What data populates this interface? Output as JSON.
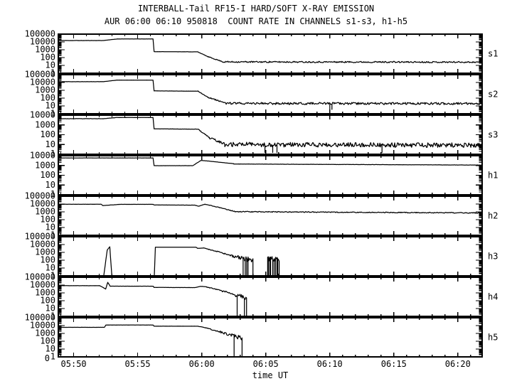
{
  "title": "INTERBALL-Tail RF15-I HARD/SOFT X-RAY EMISSION",
  "subtitle": "AUR 06:00 06:10 950818  COUNT RATE IN CHANNELS s1-s3, h1-h5",
  "colors": {
    "background": "#ffffff",
    "axis": "#000000",
    "curve": "#000000"
  },
  "rng_seed": 11,
  "chart_data": {
    "type": "line",
    "title": "INTERBALL-Tail RF15-I HARD/SOFT X-RAY EMISSION",
    "subtitle": "AUR 06:00 06:10 950818  COUNT RATE IN CHANNELS s1-s3, h1-h5",
    "xlabel": "time UT",
    "y_scale": "log",
    "grid": false,
    "corner_label": "0",
    "x_start_minutes_after_0500": 48.8,
    "x_end_minutes_after_0500": 81.9,
    "x_minor_tick_every_minutes": 1,
    "x_major_ticks": [
      {
        "t": 50,
        "label": "05:50"
      },
      {
        "t": 55,
        "label": "05:55"
      },
      {
        "t": 60,
        "label": "06:00"
      },
      {
        "t": 65,
        "label": "06:05"
      },
      {
        "t": 70,
        "label": "06:10"
      },
      {
        "t": 75,
        "label": "06:15"
      },
      {
        "t": 80,
        "label": "06:20"
      }
    ],
    "segment_format": "[t_start_min, t_end_min, log10_count_start, log10_count_end, jitter_log, needle_probability, needle_log_level]",
    "panels": [
      {
        "label": "s1",
        "decades": 5,
        "y_tick_labels": [
          "100000",
          "10000",
          "1000",
          "100",
          "10",
          "1"
        ],
        "segments": [
          [
            48.8,
            52.3,
            4.18,
            4.18,
            0.012
          ],
          [
            52.3,
            53.4,
            4.18,
            4.38,
            0.01
          ],
          [
            53.4,
            56.2,
            4.38,
            4.38,
            0.008
          ],
          [
            56.2,
            56.28,
            4.38,
            2.76
          ],
          [
            56.28,
            59.7,
            2.76,
            2.73,
            0.008
          ],
          [
            59.7,
            60.5,
            2.73,
            2.1,
            0.02
          ],
          [
            60.5,
            61.6,
            2.1,
            1.5,
            0.05
          ],
          [
            61.6,
            81.9,
            1.45,
            1.42,
            0.09
          ]
        ]
      },
      {
        "label": "s2",
        "decades": 5,
        "y_tick_labels": [
          "100000",
          "10000",
          "1000",
          "100",
          "10",
          "1"
        ],
        "segments": [
          [
            48.8,
            52.3,
            4.1,
            4.1,
            0.012
          ],
          [
            52.3,
            53.4,
            4.1,
            4.3,
            0.01
          ],
          [
            53.4,
            56.2,
            4.3,
            4.3,
            0.008
          ],
          [
            56.2,
            56.28,
            4.3,
            2.92
          ],
          [
            56.28,
            59.7,
            2.92,
            2.89,
            0.008
          ],
          [
            59.7,
            60.5,
            2.89,
            2.1,
            0.03
          ],
          [
            60.5,
            61.8,
            2.1,
            1.4,
            0.07
          ],
          [
            61.8,
            81.9,
            1.32,
            1.3,
            0.14,
            0.012,
            0.55
          ]
        ]
      },
      {
        "label": "s3",
        "decades": 4,
        "y_tick_labels": [
          "10000",
          "1000",
          "100",
          "10",
          "1"
        ],
        "segments": [
          [
            48.8,
            52.3,
            3.64,
            3.64,
            0.012
          ],
          [
            52.3,
            53.4,
            3.64,
            3.76,
            0.01
          ],
          [
            53.4,
            56.2,
            3.76,
            3.76,
            0.008
          ],
          [
            56.2,
            56.28,
            3.76,
            2.6
          ],
          [
            56.28,
            59.7,
            2.6,
            2.57,
            0.01
          ],
          [
            59.7,
            60.6,
            2.57,
            1.7,
            0.05
          ],
          [
            60.6,
            61.8,
            1.7,
            1.05,
            0.12
          ],
          [
            61.8,
            81.9,
            1.0,
            0.92,
            0.24,
            0.02,
            0.18
          ]
        ]
      },
      {
        "label": "h1",
        "decades": 4,
        "y_tick_labels": [
          "10000",
          "1000",
          "100",
          "10",
          "1"
        ],
        "segments": [
          [
            48.8,
            56.2,
            3.77,
            3.77,
            0.006
          ],
          [
            56.2,
            56.28,
            3.77,
            2.98
          ],
          [
            56.28,
            59.3,
            2.98,
            2.98,
            0.006
          ],
          [
            59.3,
            59.95,
            2.98,
            3.52,
            0.008
          ],
          [
            59.95,
            60.6,
            3.52,
            3.44,
            0.008
          ],
          [
            60.6,
            62.5,
            3.44,
            3.18,
            0.006
          ],
          [
            62.5,
            81.9,
            3.15,
            3.04,
            0.012
          ]
        ]
      },
      {
        "label": "h2",
        "decades": 5,
        "y_tick_labels": [
          "100000",
          "10000",
          "1000",
          "100",
          "10",
          "1"
        ],
        "segments": [
          [
            48.8,
            52.15,
            3.97,
            3.97,
            0.008
          ],
          [
            52.15,
            52.28,
            3.97,
            3.8
          ],
          [
            52.28,
            53.6,
            3.8,
            3.96,
            0.008
          ],
          [
            53.6,
            56.2,
            3.96,
            3.96,
            0.008
          ],
          [
            56.2,
            56.28,
            3.96,
            3.88
          ],
          [
            56.28,
            59.45,
            3.88,
            3.86,
            0.008
          ],
          [
            59.45,
            59.75,
            3.86,
            3.72,
            0.012
          ],
          [
            59.75,
            60.25,
            3.72,
            3.98,
            0.015
          ],
          [
            60.25,
            60.6,
            3.98,
            3.85,
            0.02
          ],
          [
            60.6,
            62.6,
            3.85,
            3.05,
            0.04
          ],
          [
            62.6,
            81.9,
            3.02,
            2.86,
            0.055
          ]
        ]
      },
      {
        "label": "h3",
        "decades": 5,
        "y_tick_labels": [
          "100000",
          "10000",
          "1000",
          "100",
          "10",
          "1"
        ],
        "segments": [
          [
            48.8,
            52.35,
            0.02,
            0.02
          ],
          [
            52.35,
            52.62,
            0.02,
            3.3
          ],
          [
            52.62,
            52.82,
            3.3,
            3.72
          ],
          [
            52.82,
            52.98,
            3.72,
            0.02
          ],
          [
            52.98,
            56.3,
            0.02,
            0.02
          ],
          [
            56.3,
            56.38,
            0.02,
            3.66
          ],
          [
            56.38,
            59.55,
            3.66,
            3.66,
            0.006
          ],
          [
            59.55,
            59.68,
            3.66,
            3.52
          ],
          [
            59.68,
            60.15,
            3.52,
            3.56,
            0.01
          ],
          [
            60.15,
            61.2,
            3.56,
            3.1,
            0.04
          ],
          [
            61.2,
            62.4,
            3.1,
            2.55,
            0.1,
            0.01
          ],
          [
            62.4,
            63.4,
            2.55,
            2.15,
            0.25,
            0.14
          ],
          [
            63.4,
            64.0,
            2.15,
            2.0,
            0.32,
            0.3
          ],
          [
            64.0,
            65.15,
            0.02,
            0.02
          ],
          [
            65.15,
            66.05,
            2.25,
            2.0,
            0.32,
            0.3
          ],
          [
            66.05,
            81.9,
            0.02,
            0.02
          ]
        ]
      },
      {
        "label": "h4",
        "decades": 5,
        "y_tick_labels": [
          "100000",
          "10000",
          "1000",
          "100",
          "10",
          "1"
        ],
        "segments": [
          [
            48.8,
            52.05,
            3.92,
            3.92,
            0.008
          ],
          [
            52.05,
            52.5,
            3.92,
            3.5,
            0.012
          ],
          [
            52.5,
            52.66,
            3.5,
            4.35
          ],
          [
            52.66,
            52.85,
            4.35,
            3.86
          ],
          [
            52.85,
            56.2,
            3.86,
            3.86,
            0.008
          ],
          [
            56.2,
            56.28,
            3.86,
            3.7
          ],
          [
            56.28,
            59.45,
            3.7,
            3.68,
            0.008
          ],
          [
            59.45,
            59.95,
            3.68,
            3.84,
            0.01
          ],
          [
            59.95,
            60.4,
            3.84,
            3.76,
            0.015
          ],
          [
            60.4,
            61.6,
            3.76,
            3.25,
            0.05
          ],
          [
            61.6,
            62.6,
            3.25,
            2.75,
            0.12,
            0.02
          ],
          [
            62.6,
            63.5,
            2.75,
            2.35,
            0.25,
            0.22
          ],
          [
            63.5,
            81.9,
            0.02,
            0.02
          ]
        ]
      },
      {
        "label": "h5",
        "decades": 5,
        "y_tick_labels": [
          "100000",
          "10000",
          "1000",
          "100",
          "10",
          "1"
        ],
        "segments": [
          [
            48.8,
            52.4,
            3.78,
            3.78,
            0.008
          ],
          [
            52.4,
            52.52,
            3.78,
            4.08
          ],
          [
            52.52,
            56.2,
            4.08,
            4.08,
            0.006
          ],
          [
            56.2,
            56.28,
            4.08,
            3.92
          ],
          [
            56.28,
            59.7,
            3.92,
            3.92,
            0.006
          ],
          [
            59.7,
            60.3,
            3.92,
            3.72,
            0.02
          ],
          [
            60.3,
            61.4,
            3.72,
            3.2,
            0.06
          ],
          [
            61.4,
            62.3,
            3.2,
            2.75,
            0.14,
            0.03
          ],
          [
            62.3,
            63.15,
            2.75,
            2.4,
            0.26,
            0.22
          ],
          [
            63.15,
            81.9,
            0.02,
            0.02
          ]
        ]
      }
    ]
  }
}
